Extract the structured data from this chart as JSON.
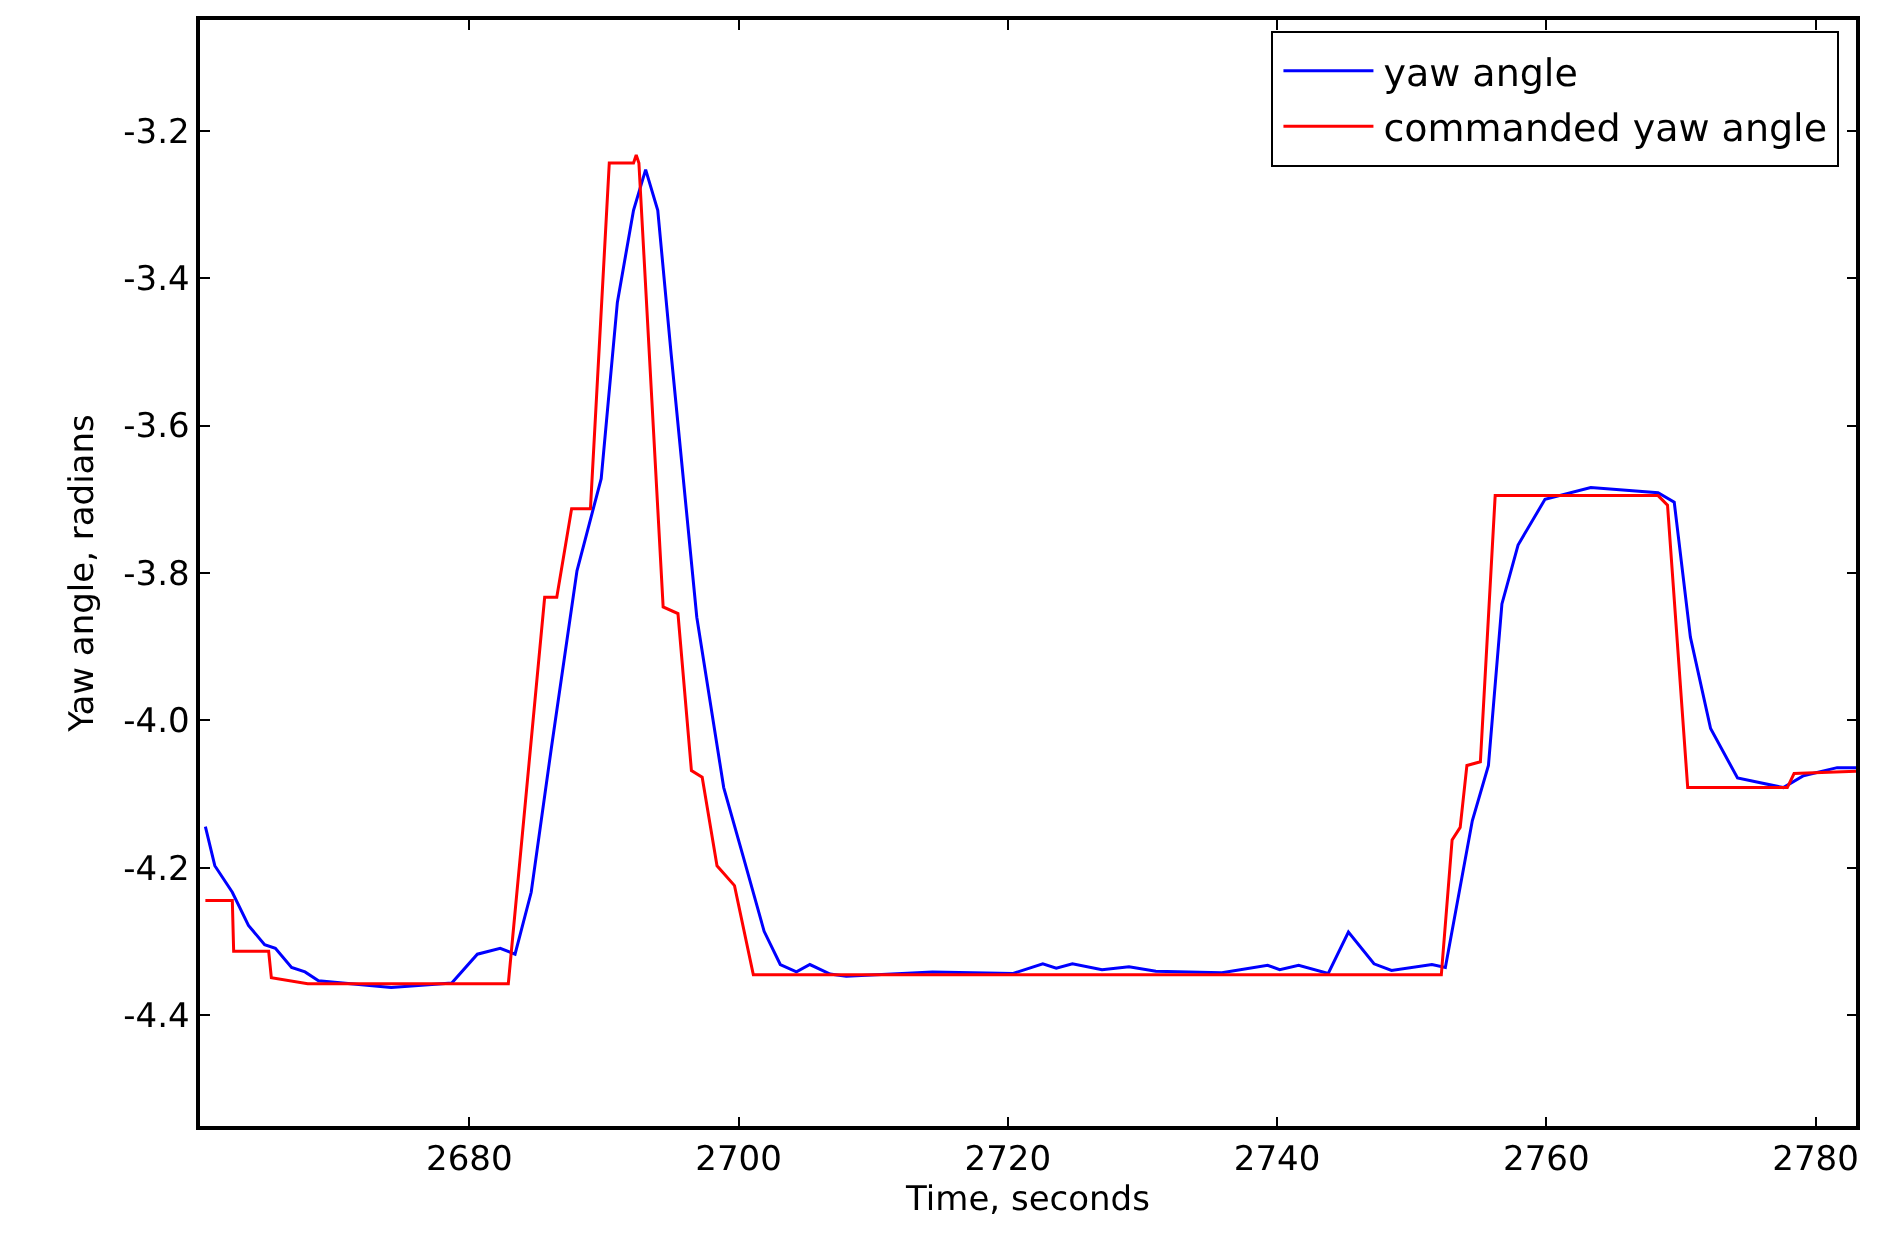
{
  "chart_data": {
    "type": "line",
    "xlabel": "Time, seconds",
    "ylabel": "Yaw angle, radians",
    "xlim": [
      2660,
      2783
    ],
    "xticks": [
      2680,
      2700,
      2720,
      2740,
      2760,
      2780
    ],
    "ylim": [
      -4.55,
      -3.05
    ],
    "yticks": [
      {
        "value": -3.2,
        "label": "-3.2"
      },
      {
        "value": -3.4,
        "label": "-3.4"
      },
      {
        "value": -3.6,
        "label": "-3.6"
      },
      {
        "value": -3.8,
        "label": "-3.8"
      },
      {
        "value": -4.0,
        "label": "-4.0"
      },
      {
        "value": -4.2,
        "label": "-4.2"
      },
      {
        "value": -4.4,
        "label": "-4.4"
      }
    ],
    "legend": "top right",
    "marker": "none",
    "line_style": "solid",
    "series": [
      {
        "name": "yaw angle",
        "color": "#0000ff",
        "x": [
          2660.4,
          2661.1,
          2662.4,
          2663.6,
          2664.8,
          2665.6,
          2666.8,
          2667.8,
          2668.8,
          2674.2,
          2678.7,
          2680.6,
          2682.3,
          2683.4,
          2684.6,
          2686.1,
          2688.0,
          2689.8,
          2691.0,
          2692.2,
          2693.1,
          2694.0,
          2695.0,
          2696.9,
          2698.9,
          2700.4,
          2701.9,
          2703.1,
          2704.3,
          2705.3,
          2706.8,
          2708.0,
          2714.4,
          2720.4,
          2722.6,
          2723.6,
          2724.8,
          2727.0,
          2729.0,
          2731.0,
          2735.9,
          2739.3,
          2740.2,
          2741.6,
          2743.8,
          2745.3,
          2747.2,
          2748.5,
          2751.5,
          2752.5,
          2754.5,
          2755.7,
          2756.7,
          2757.9,
          2759.9,
          2763.3,
          2768.3,
          2769.5,
          2770.7,
          2772.2,
          2774.2,
          2777.6,
          2779.1,
          2781.6,
          2783.0
        ],
        "values": [
          -4.144,
          -4.197,
          -4.233,
          -4.278,
          -4.304,
          -4.309,
          -4.335,
          -4.341,
          -4.353,
          -4.362,
          -4.356,
          -4.317,
          -4.309,
          -4.317,
          -4.233,
          -4.037,
          -3.797,
          -3.672,
          -3.433,
          -3.308,
          -3.253,
          -3.308,
          -3.504,
          -3.86,
          -4.091,
          -4.188,
          -4.286,
          -4.331,
          -4.341,
          -4.331,
          -4.344,
          -4.347,
          -4.341,
          -4.343,
          -4.33,
          -4.336,
          -4.33,
          -4.338,
          -4.334,
          -4.34,
          -4.342,
          -4.332,
          -4.338,
          -4.332,
          -4.343,
          -4.287,
          -4.33,
          -4.339,
          -4.331,
          -4.335,
          -4.136,
          -4.061,
          -3.842,
          -3.762,
          -3.7,
          -3.684,
          -3.691,
          -3.704,
          -3.887,
          -4.011,
          -4.078,
          -4.091,
          -4.075,
          -4.064,
          -4.064
        ]
      },
      {
        "name": "commanded yaw angle",
        "color": "#ff0000",
        "x": [
          2660.4,
          2662.4,
          2662.5,
          2665.1,
          2665.3,
          2668.0,
          2682.9,
          2685.6,
          2686.5,
          2687.6,
          2689.0,
          2690.4,
          2692.2,
          2692.4,
          2692.6,
          2694.4,
          2695.5,
          2696.5,
          2697.3,
          2698.4,
          2699.7,
          2701.1,
          2752.2,
          2753.0,
          2753.6,
          2754.1,
          2755.1,
          2756.2,
          2768.3,
          2769.0,
          2770.5,
          2777.9,
          2778.4,
          2783.0
        ],
        "values": [
          -4.244,
          -4.244,
          -4.313,
          -4.313,
          -4.349,
          -4.357,
          -4.357,
          -3.833,
          -3.833,
          -3.713,
          -3.713,
          -3.244,
          -3.244,
          -3.233,
          -3.244,
          -3.846,
          -3.855,
          -4.068,
          -4.077,
          -4.197,
          -4.224,
          -4.345,
          -4.345,
          -4.162,
          -4.145,
          -4.061,
          -4.056,
          -3.695,
          -3.695,
          -3.708,
          -4.091,
          -4.091,
          -4.072,
          -4.069
        ]
      }
    ]
  }
}
